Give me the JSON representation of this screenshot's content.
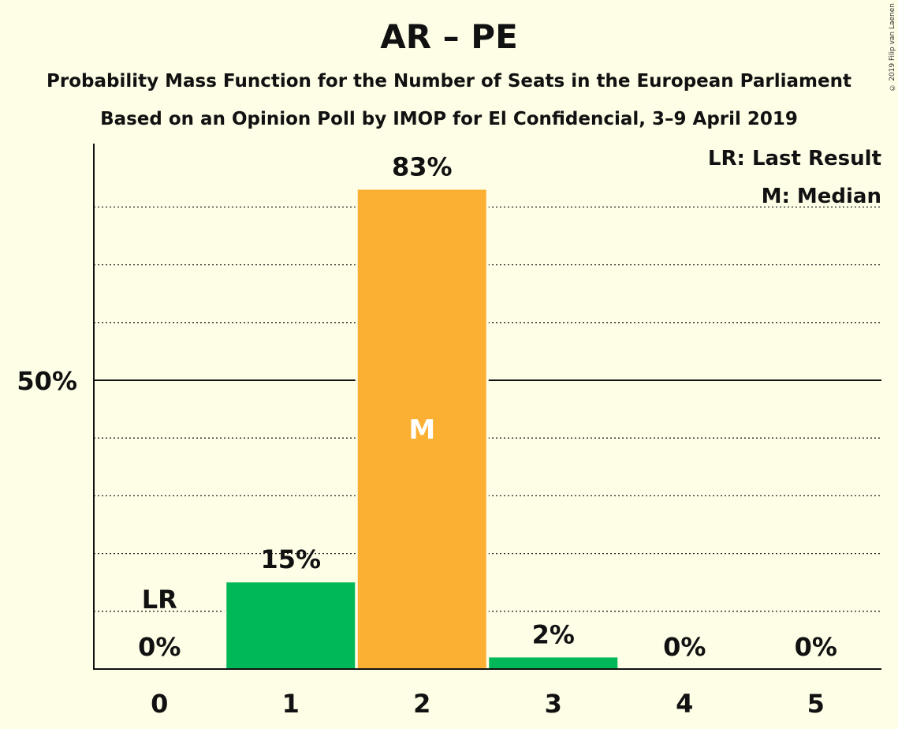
{
  "title": "AR – PE",
  "subtitle": "Probability Mass Function for the Number of Seats in the European Parliament",
  "subtitle2": "Based on an Opinion Poll by IMOP for El Confidencial, 3–9 April 2019",
  "copyright": "© 2019 Filip van Laenen",
  "legend": {
    "last_result": "LR: Last Result",
    "median": "M: Median"
  },
  "colors": {
    "background": "#fefde6",
    "bar": "#00b857",
    "median_bar": "#fbb034"
  },
  "chart_data": {
    "type": "bar",
    "categories": [
      "0",
      "1",
      "2",
      "3",
      "4",
      "5"
    ],
    "values": [
      0,
      15,
      83,
      2,
      0,
      0
    ],
    "value_labels": [
      "0%",
      "15%",
      "83%",
      "2%",
      "0%",
      "0%"
    ],
    "ylim": [
      0,
      90
    ],
    "y_ticks": [
      {
        "value": 50,
        "label": "50%"
      }
    ],
    "gridlines": [
      10,
      20,
      30,
      40,
      60,
      70,
      80
    ],
    "median_index": 2,
    "median_label": "M",
    "last_result_index": 0,
    "last_result_label": "LR",
    "legend_placement": "top-right"
  }
}
